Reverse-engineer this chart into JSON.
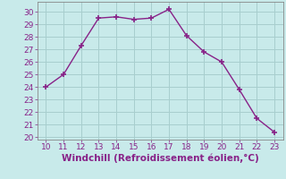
{
  "x": [
    10,
    11,
    12,
    13,
    14,
    15,
    16,
    17,
    18,
    19,
    20,
    21,
    22,
    23
  ],
  "y": [
    24,
    25,
    27.3,
    29.5,
    29.6,
    29.4,
    29.5,
    30.2,
    28.1,
    26.8,
    26.0,
    23.8,
    21.5,
    20.4
  ],
  "line_color": "#882288",
  "marker": "+",
  "marker_size": 5,
  "line_width": 1.0,
  "xlabel": "Windchill (Refroidissement éolien,°C)",
  "xlabel_fontsize": 7.5,
  "xlim": [
    9.5,
    23.5
  ],
  "ylim": [
    19.8,
    30.8
  ],
  "xticks": [
    10,
    11,
    12,
    13,
    14,
    15,
    16,
    17,
    18,
    19,
    20,
    21,
    22,
    23
  ],
  "yticks": [
    20,
    21,
    22,
    23,
    24,
    25,
    26,
    27,
    28,
    29,
    30
  ],
  "tick_fontsize": 6.5,
  "background_color": "#c8eaea",
  "grid_color": "#a8cece",
  "marker_color": "#882288",
  "spine_color": "#888888"
}
